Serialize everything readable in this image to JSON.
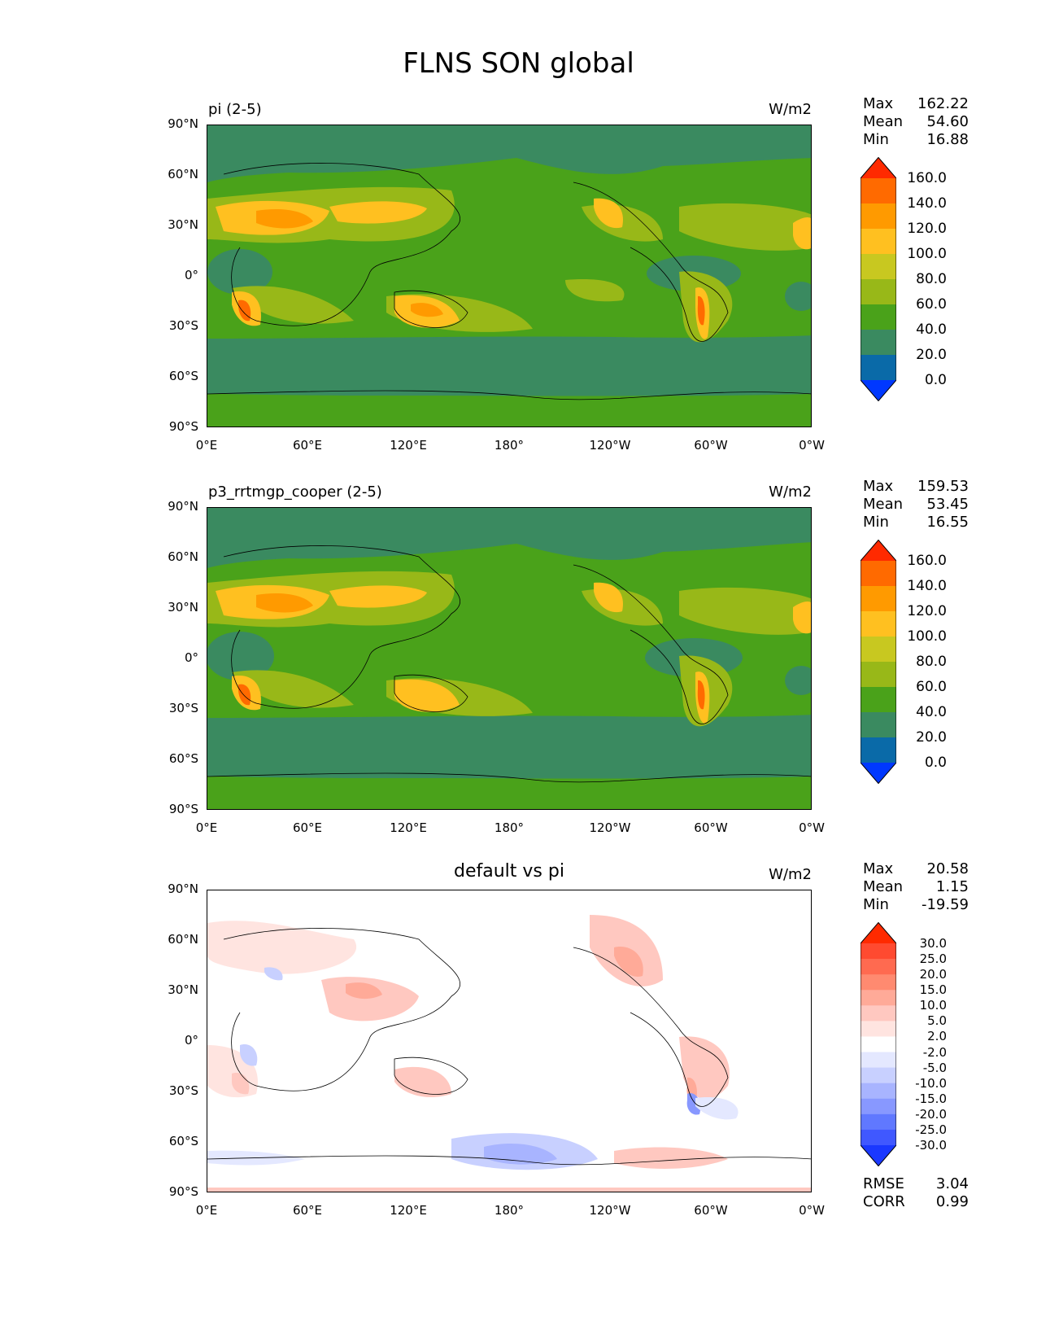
{
  "figure": {
    "title": "FLNS SON global"
  },
  "axes": {
    "lat_ticks": [
      "90°N",
      "60°N",
      "30°N",
      "0°",
      "30°S",
      "60°S",
      "90°S"
    ],
    "lon_ticks": [
      "0°E",
      "60°E",
      "120°E",
      "180°",
      "120°W",
      "60°W",
      "0°W"
    ]
  },
  "chart_data": [
    {
      "type": "heatmap",
      "title": "pi (2-5)",
      "units": "W/m2",
      "stats": {
        "max_label": "Max",
        "max": "162.22",
        "mean_label": "Mean",
        "mean": "54.60",
        "min_label": "Min",
        "min": "16.88"
      },
      "colorbar": {
        "levels": [
          "160.0",
          "140.0",
          "120.0",
          "100.0",
          "80.0",
          "60.0",
          "40.0",
          "20.0",
          "0.0"
        ],
        "colors": [
          "#ff2a00",
          "#ff6a00",
          "#ff9a00",
          "#ffc020",
          "#c8c820",
          "#98b818",
          "#4aa21a",
          "#3a8a60",
          "#0a6aa8",
          "#0038ff"
        ]
      }
    },
    {
      "type": "heatmap",
      "title": "p3_rrtmgp_cooper (2-5)",
      "units": "W/m2",
      "stats": {
        "max_label": "Max",
        "max": "159.53",
        "mean_label": "Mean",
        "mean": "53.45",
        "min_label": "Min",
        "min": "16.55"
      },
      "colorbar": {
        "levels": [
          "160.0",
          "140.0",
          "120.0",
          "100.0",
          "80.0",
          "60.0",
          "40.0",
          "20.0",
          "0.0"
        ],
        "colors": [
          "#ff2a00",
          "#ff6a00",
          "#ff9a00",
          "#ffc020",
          "#c8c820",
          "#98b818",
          "#4aa21a",
          "#3a8a60",
          "#0a6aa8",
          "#0038ff"
        ]
      }
    },
    {
      "type": "heatmap",
      "title": "default vs pi",
      "units": "W/m2",
      "stats": {
        "max_label": "Max",
        "max": "20.58",
        "mean_label": "Mean",
        "mean": "1.15",
        "min_label": "Min",
        "min": "-19.59"
      },
      "colorbar": {
        "levels": [
          "30.0",
          "25.0",
          "20.0",
          "15.0",
          "10.0",
          "5.0",
          "2.0",
          "-2.0",
          "-5.0",
          "-10.0",
          "-15.0",
          "-20.0",
          "-25.0",
          "-30.0"
        ],
        "colors": [
          "#ff2a00",
          "#ff4a30",
          "#ff6a50",
          "#ff8a70",
          "#ffaa98",
          "#ffc8c0",
          "#ffe4e0",
          "#ffffff",
          "#e4e8ff",
          "#c8d0ff",
          "#a8b4ff",
          "#8898ff",
          "#6078ff",
          "#4058ff",
          "#1a38ff"
        ]
      },
      "metrics": {
        "rmse_label": "RMSE",
        "rmse": "3.04",
        "corr_label": "CORR",
        "corr": "0.99"
      }
    }
  ]
}
